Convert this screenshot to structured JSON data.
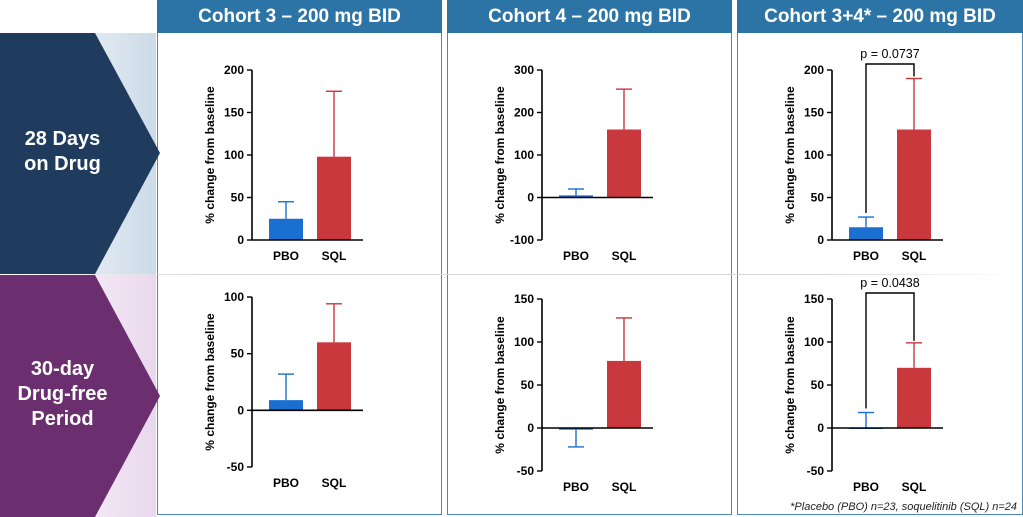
{
  "header": {
    "cohort3": "Cohort 3 – 200 mg BID",
    "cohort4": "Cohort 4 – 200 mg BID",
    "cohort34": "Cohort 3+4* – 200 mg BID"
  },
  "rows": {
    "row1_label": "28 Days\non Drug",
    "row2_label": "30-day\nDrug-free\nPeriod"
  },
  "colors": {
    "header_bg": "#2d74a6",
    "row1_arrow": "#1f3b5e",
    "row2_arrow": "#6b2f70",
    "pbo": "#1a6fd0",
    "sql": "#c8383d"
  },
  "footnote": "*Placebo (PBO) n=23, soquelitinib (SQL) n=24",
  "chart_data": [
    {
      "id": "c3-d28",
      "type": "bar",
      "categories": [
        "PBO",
        "SQL"
      ],
      "values": [
        25,
        98
      ],
      "errors": [
        20,
        77
      ],
      "ylabel": "% change from baseline",
      "ylim": [
        0,
        200
      ],
      "yticks": [
        "0",
        "50",
        "100",
        "150",
        "200"
      ],
      "pvalue": ""
    },
    {
      "id": "c4-d28",
      "type": "bar",
      "categories": [
        "PBO",
        "SQL"
      ],
      "values": [
        5,
        160
      ],
      "errors": [
        15,
        95
      ],
      "ylabel": "% change from baseline",
      "ylim": [
        -100,
        300
      ],
      "yticks": [
        "-100",
        "0",
        "100",
        "200",
        "300"
      ],
      "pvalue": ""
    },
    {
      "id": "c34-d28",
      "type": "bar",
      "categories": [
        "PBO",
        "SQL"
      ],
      "values": [
        15,
        130
      ],
      "errors": [
        12,
        60
      ],
      "ylabel": "% change from baseline",
      "ylim": [
        0,
        200
      ],
      "yticks": [
        "0",
        "50",
        "100",
        "150",
        "200"
      ],
      "pvalue": "p = 0.0737"
    },
    {
      "id": "c3-free",
      "type": "bar",
      "categories": [
        "PBO",
        "SQL"
      ],
      "values": [
        9,
        60
      ],
      "errors": [
        23,
        34
      ],
      "ylabel": "% change from baseline",
      "ylim": [
        -50,
        100
      ],
      "yticks": [
        "-50",
        "0",
        "50",
        "100"
      ],
      "pvalue": ""
    },
    {
      "id": "c4-free",
      "type": "bar",
      "categories": [
        "PBO",
        "SQL"
      ],
      "values": [
        -2,
        78
      ],
      "errors": [
        20,
        50
      ],
      "ylabel": "% change from baseline",
      "ylim": [
        -50,
        150
      ],
      "yticks": [
        "-50",
        "0",
        "50",
        "100",
        "150"
      ],
      "pvalue": ""
    },
    {
      "id": "c34-free",
      "type": "bar",
      "categories": [
        "PBO",
        "SQL"
      ],
      "values": [
        0,
        70
      ],
      "errors": [
        18,
        29
      ],
      "ylabel": "% change from baseline",
      "ylim": [
        -50,
        150
      ],
      "yticks": [
        "-50",
        "0",
        "50",
        "100",
        "150"
      ],
      "pvalue": "p = 0.0438"
    }
  ]
}
